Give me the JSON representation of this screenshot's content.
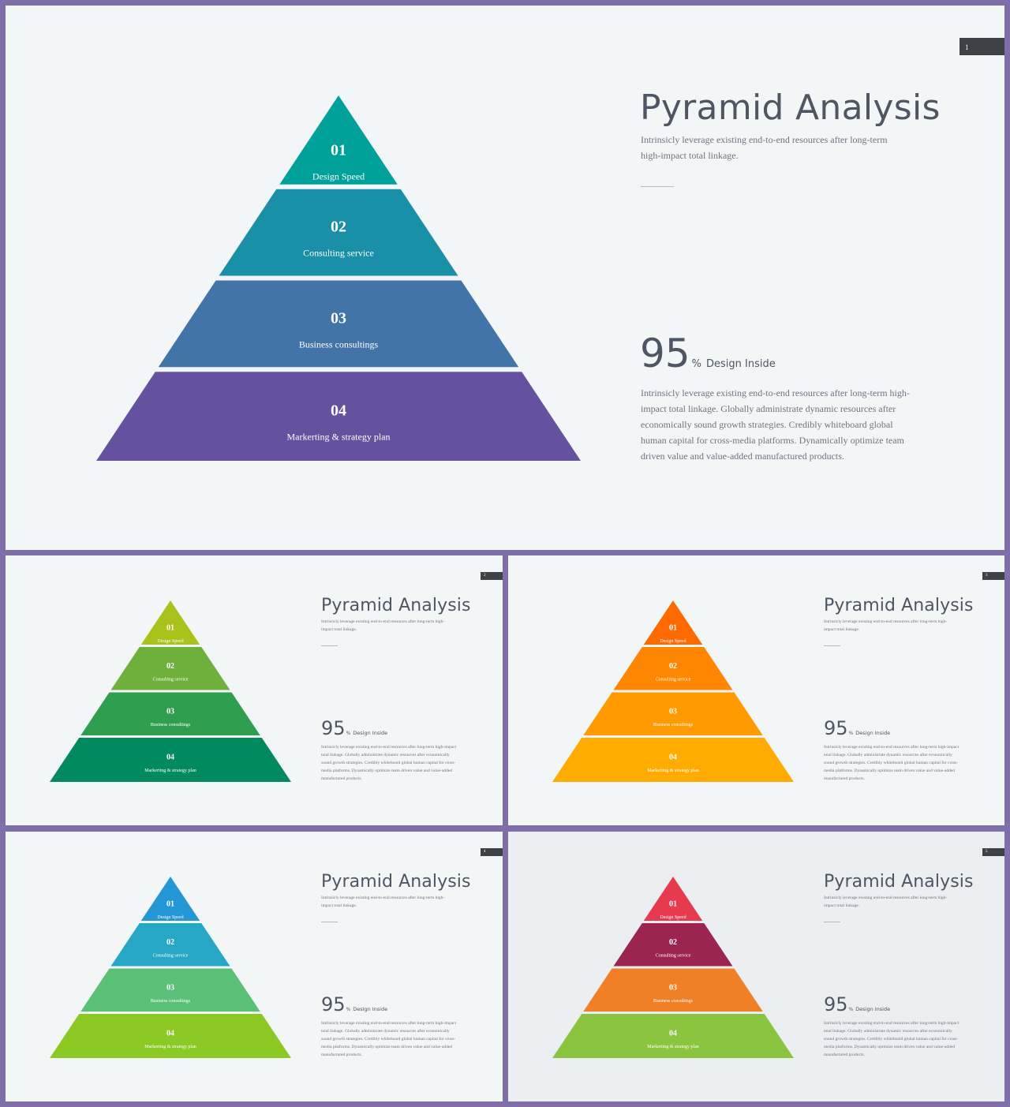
{
  "slides": [
    {
      "page": "1",
      "title": "Pyramid Analysis",
      "subtitle": "Intrinsicly leverage existing end-to-end resources after long-term high-impact total linkage.",
      "stat": {
        "value": "95",
        "unit": "%",
        "label": "Design Inside"
      },
      "body": "Intrinsicly leverage existing end-to-end resources after long-term high-impact total linkage. Globally administrate dynamic resources after economically sound growth strategies. Credibly whiteboard global human capital for cross-media platforms. Dynamically optimize team driven value and value-added manufactured products.",
      "tiers": [
        {
          "num": "01",
          "label": "Design Speed",
          "color": "#00a19a"
        },
        {
          "num": "02",
          "label": "Consulting service",
          "color": "#1a8fa8"
        },
        {
          "num": "03",
          "label": "Business consultings",
          "color": "#4374a8"
        },
        {
          "num": "04",
          "label": "Markerting & strategy plan",
          "color": "#66519f"
        }
      ]
    },
    {
      "page": "2",
      "title": "Pyramid Analysis",
      "subtitle": "Intrinsicly leverage existing end-to-end resources after long-term high-impact total linkage.",
      "stat": {
        "value": "95",
        "unit": "%",
        "label": "Design Inside"
      },
      "body": "Intrinsicly leverage existing end-to-end resources after long-term high-impact total linkage. Globally administrate dynamic resources after economically sound growth strategies. Credibly whiteboard global human capital for cross-media platforms. Dynamically optimize team driven value and value-added manufactured products.",
      "tiers": [
        {
          "num": "01",
          "label": "Design Speed",
          "color": "#a9c31c"
        },
        {
          "num": "02",
          "label": "Consulting service",
          "color": "#6fb03c"
        },
        {
          "num": "03",
          "label": "Business consultings",
          "color": "#2f9e4e"
        },
        {
          "num": "04",
          "label": "Markerting & strategy plan",
          "color": "#008a5e"
        }
      ]
    },
    {
      "page": "3",
      "title": "Pyramid Analysis",
      "subtitle": "Intrinsicly leverage existing end-to-end resources after long-term high-impact total linkage.",
      "stat": {
        "value": "95",
        "unit": "%",
        "label": "Design Inside"
      },
      "body": "Intrinsicly leverage existing end-to-end resources after long-term high-impact total linkage. Globally administrate dynamic resources after economically sound growth strategies. Credibly whiteboard global human capital for cross-media platforms. Dynamically optimize team driven value and value-added manufactured products.",
      "tiers": [
        {
          "num": "01",
          "label": "Design Speed",
          "color": "#ff6a00"
        },
        {
          "num": "02",
          "label": "Consulting service",
          "color": "#ff8600"
        },
        {
          "num": "03",
          "label": "Business consultings",
          "color": "#ff9a00"
        },
        {
          "num": "04",
          "label": "Markerting & strategy plan",
          "color": "#ffab00"
        }
      ]
    },
    {
      "page": "4",
      "title": "Pyramid Analysis",
      "subtitle": "Intrinsicly leverage existing end-to-end resources after long-term high-impact total linkage.",
      "stat": {
        "value": "95",
        "unit": "%",
        "label": "Design Inside"
      },
      "body": "Intrinsicly leverage existing end-to-end resources after long-term high-impact total linkage. Globally administrate dynamic resources after economically sound growth strategies. Credibly whiteboard global human capital for cross-media platforms. Dynamically optimize team driven value and value-added manufactured products.",
      "tiers": [
        {
          "num": "01",
          "label": "Design Speed",
          "color": "#2497d6"
        },
        {
          "num": "02",
          "label": "Consulting service",
          "color": "#27a7c5"
        },
        {
          "num": "03",
          "label": "Business consultings",
          "color": "#5bbf78"
        },
        {
          "num": "04",
          "label": "Markerting & strategy plan",
          "color": "#8cc925"
        }
      ]
    },
    {
      "page": "5",
      "title": "Pyramid Analysis",
      "subtitle": "Intrinsicly leverage existing end-to-end resources after long-term high-impact total linkage.",
      "stat": {
        "value": "95",
        "unit": "%",
        "label": "Design Inside"
      },
      "body": "Intrinsicly leverage existing end-to-end resources after long-term high-impact total linkage. Globally administrate dynamic resources after economically sound growth strategies. Credibly whiteboard global human capital for cross-media platforms. Dynamically optimize team driven value and value-added manufactured products.",
      "tiers": [
        {
          "num": "01",
          "label": "Design Speed",
          "color": "#e83a4e"
        },
        {
          "num": "02",
          "label": "Consulting service",
          "color": "#9b2450"
        },
        {
          "num": "03",
          "label": "Business consultings",
          "color": "#f07f25"
        },
        {
          "num": "04",
          "label": "Markerting & strategy plan",
          "color": "#8bc43f"
        }
      ]
    }
  ]
}
